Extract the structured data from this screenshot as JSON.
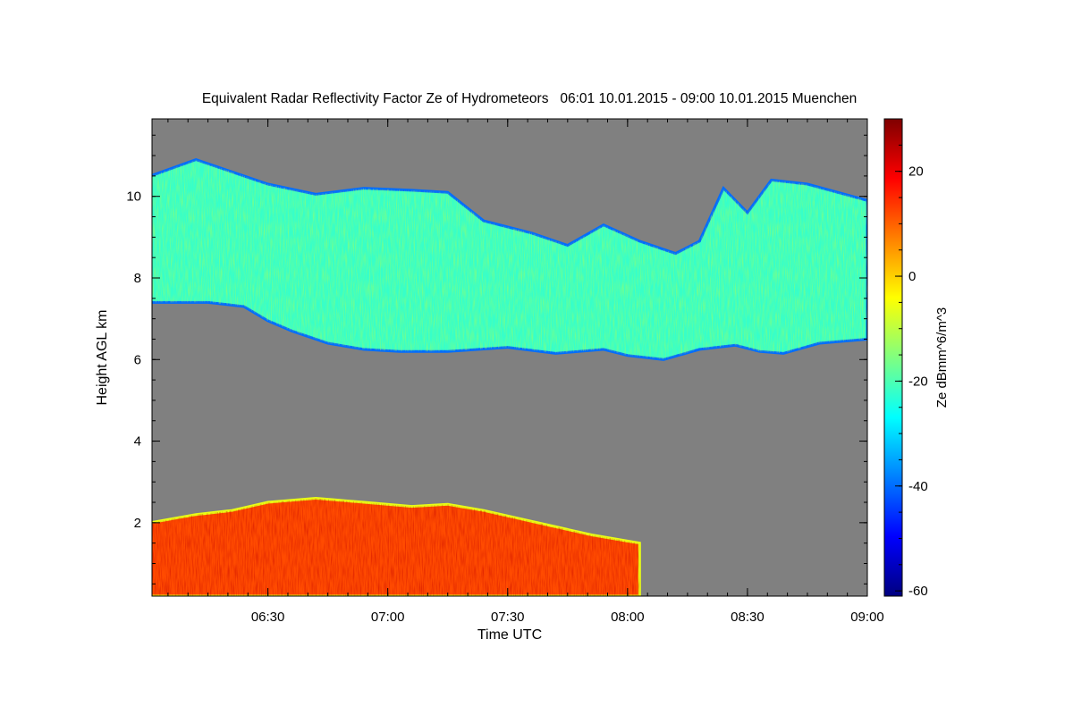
{
  "chart_data": {
    "type": "heatmap",
    "title": "Equivalent Radar Reflectivity Factor Ze of Hydrometeors   06:01 10.01.2015 - 09:00 10.01.2015 Muenchen",
    "xlabel": "Time UTC",
    "ylabel": "Height AGL km",
    "x_ticks": [
      "06:30",
      "07:00",
      "07:30",
      "08:00",
      "08:30",
      "09:00"
    ],
    "y_ticks": [
      "2",
      "4",
      "6",
      "8",
      "10"
    ],
    "x_range": [
      "06:01",
      "09:00"
    ],
    "y_range": [
      0.2,
      11.9
    ],
    "colorbar": {
      "label": "Ze dBmm^6/m^3",
      "range": [
        -61,
        30
      ],
      "ticks": [
        "20",
        "0",
        "-20",
        "-40",
        "-60"
      ],
      "colormap": [
        "#00007f",
        "#0000ff",
        "#0080ff",
        "#00ffff",
        "#80ff80",
        "#ffff00",
        "#ff8000",
        "#ff0000",
        "#7f0000"
      ]
    },
    "background_color": "#808080",
    "regions": [
      {
        "name": "upper cloud layer",
        "typical_ze": -22,
        "time_start": "06:01",
        "time_end": "09:00",
        "base_km": [
          [
            6.01,
            7.4
          ],
          [
            6.25,
            7.4
          ],
          [
            6.4,
            7.3
          ],
          [
            6.5,
            6.95
          ],
          [
            6.6,
            6.7
          ],
          [
            6.75,
            6.4
          ],
          [
            6.9,
            6.25
          ],
          [
            7.05,
            6.2
          ],
          [
            7.25,
            6.2
          ],
          [
            7.5,
            6.3
          ],
          [
            7.7,
            6.15
          ],
          [
            7.9,
            6.25
          ],
          [
            8.0,
            6.1
          ],
          [
            8.15,
            6.0
          ],
          [
            8.3,
            6.25
          ],
          [
            8.45,
            6.35
          ],
          [
            8.55,
            6.2
          ],
          [
            8.65,
            6.15
          ],
          [
            8.8,
            6.4
          ],
          [
            9.0,
            6.5
          ]
        ],
        "top_km": [
          [
            6.01,
            10.5
          ],
          [
            6.2,
            10.9
          ],
          [
            6.35,
            10.6
          ],
          [
            6.5,
            10.3
          ],
          [
            6.7,
            10.05
          ],
          [
            6.9,
            10.2
          ],
          [
            7.1,
            10.15
          ],
          [
            7.25,
            10.1
          ],
          [
            7.4,
            9.4
          ],
          [
            7.6,
            9.1
          ],
          [
            7.75,
            8.8
          ],
          [
            7.9,
            9.3
          ],
          [
            8.05,
            8.9
          ],
          [
            8.2,
            8.6
          ],
          [
            8.3,
            8.9
          ],
          [
            8.4,
            10.2
          ],
          [
            8.5,
            9.6
          ],
          [
            8.6,
            10.4
          ],
          [
            8.75,
            10.3
          ],
          [
            9.0,
            9.9
          ]
        ]
      },
      {
        "name": "lower precipitation layer",
        "typical_ze": 12,
        "time_start": "06:01",
        "time_end": "08:05",
        "base_km": [
          [
            6.01,
            0.2
          ],
          [
            8.05,
            0.2
          ]
        ],
        "top_km": [
          [
            6.01,
            2.0
          ],
          [
            6.2,
            2.2
          ],
          [
            6.35,
            2.3
          ],
          [
            6.5,
            2.5
          ],
          [
            6.7,
            2.6
          ],
          [
            6.9,
            2.5
          ],
          [
            7.1,
            2.4
          ],
          [
            7.25,
            2.45
          ],
          [
            7.4,
            2.3
          ],
          [
            7.55,
            2.1
          ],
          [
            7.7,
            1.9
          ],
          [
            7.85,
            1.7
          ],
          [
            8.0,
            1.55
          ],
          [
            8.05,
            1.5
          ]
        ]
      }
    ]
  }
}
